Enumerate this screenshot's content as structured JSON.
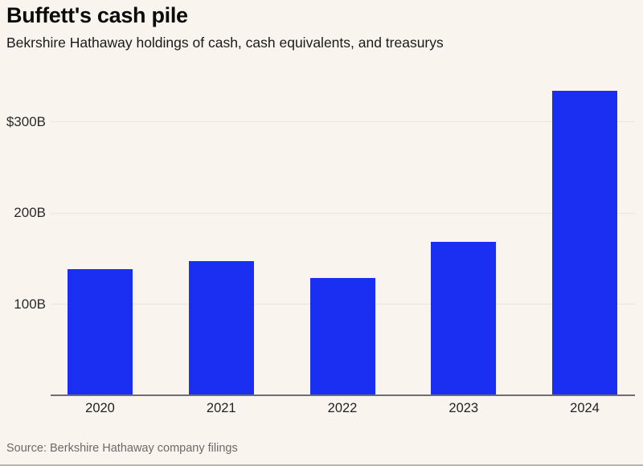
{
  "header": {
    "title": "Buffett's cash pile",
    "subtitle": "Bekrshire Hathaway holdings of cash, cash equivalents, and treasurys"
  },
  "footer": {
    "source": "Source: Berkshire Hathaway company filings"
  },
  "colors": {
    "background": "#f9f4ee",
    "bar": "#1a2ff2",
    "gridline": "#e9e4dd",
    "axis_line": "#6e6e6e",
    "title_text": "#0b0b0b",
    "source_text": "#6d6964"
  },
  "chart_data": {
    "type": "bar",
    "title": "Buffett's cash pile",
    "subtitle": "Bekrshire Hathaway holdings of cash, cash equivalents, and treasurys",
    "categories": [
      "2020",
      "2021",
      "2022",
      "2023",
      "2024"
    ],
    "values": [
      138,
      147,
      129,
      168,
      334
    ],
    "unit": "billions USD",
    "xlabel": "",
    "ylabel": "",
    "ylim": [
      0,
      350
    ],
    "yticks": [
      {
        "value": 100,
        "label": "100B"
      },
      {
        "value": 200,
        "label": "200B"
      },
      {
        "value": 300,
        "label": "$300B"
      }
    ],
    "grid": "horizontal",
    "legend": "none",
    "source": "Source: Berkshire Hathaway company filings"
  }
}
